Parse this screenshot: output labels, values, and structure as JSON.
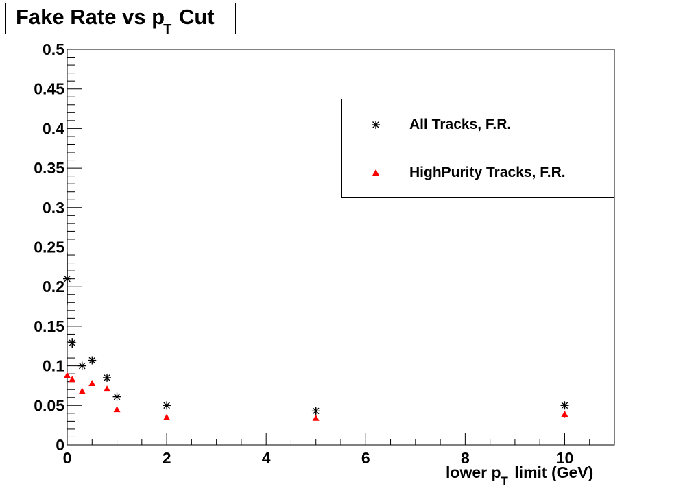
{
  "title": {
    "main": "Fake Rate vs p",
    "sub": "T",
    "rest": " Cut"
  },
  "x_axis_label": {
    "main": "lower p",
    "sub": "T",
    "rest": " limit (GeV)"
  },
  "legend": [
    {
      "label": "All Tracks, F.R.",
      "marker": "asterisk",
      "color": "#000000"
    },
    {
      "label": "HighPurity Tracks, F.R.",
      "marker": "triangle",
      "color": "#ff0000"
    }
  ],
  "chart_data": {
    "type": "scatter",
    "title": "Fake Rate vs pT Cut",
    "xlabel": "lower pT limit (GeV)",
    "ylabel": "",
    "xlim": [
      0,
      11
    ],
    "ylim": [
      0,
      0.5
    ],
    "x_ticks": [
      "0",
      "2",
      "4",
      "6",
      "8",
      "10"
    ],
    "y_ticks": [
      "0",
      "0.05",
      "0.1",
      "0.15",
      "0.2",
      "0.25",
      "0.3",
      "0.35",
      "0.4",
      "0.45",
      "0.5"
    ],
    "grid": false,
    "legend_position": "top-right",
    "series": [
      {
        "name": "All Tracks, F.R.",
        "marker": "asterisk",
        "color": "#000000",
        "points": [
          {
            "x": 0,
            "y": 0.21,
            "err": 0.033
          },
          {
            "x": 0.1,
            "y": 0.129,
            "err": 0.006
          },
          {
            "x": 0.3,
            "y": 0.1,
            "err": 0.003
          },
          {
            "x": 0.5,
            "y": 0.107,
            "err": 0.003
          },
          {
            "x": 0.8,
            "y": 0.085,
            "err": 0.003
          },
          {
            "x": 1,
            "y": 0.061,
            "err": 0.002
          },
          {
            "x": 2,
            "y": 0.05,
            "err": 0.002
          },
          {
            "x": 5,
            "y": 0.043,
            "err": 0.004
          },
          {
            "x": 10,
            "y": 0.05,
            "err": 0.004
          }
        ]
      },
      {
        "name": "HighPurity Tracks, F.R.",
        "marker": "triangle",
        "color": "#ff0000",
        "points": [
          {
            "x": 0,
            "y": 0.088,
            "err": 0.002
          },
          {
            "x": 0.1,
            "y": 0.083,
            "err": 0.002
          },
          {
            "x": 0.3,
            "y": 0.068,
            "err": 0.002
          },
          {
            "x": 0.5,
            "y": 0.078,
            "err": 0.002
          },
          {
            "x": 0.8,
            "y": 0.071,
            "err": 0.002
          },
          {
            "x": 1,
            "y": 0.045,
            "err": 0.002
          },
          {
            "x": 2,
            "y": 0.035,
            "err": 0.002
          },
          {
            "x": 5,
            "y": 0.034,
            "err": 0.003
          },
          {
            "x": 10,
            "y": 0.039,
            "err": 0.004
          }
        ]
      }
    ]
  }
}
